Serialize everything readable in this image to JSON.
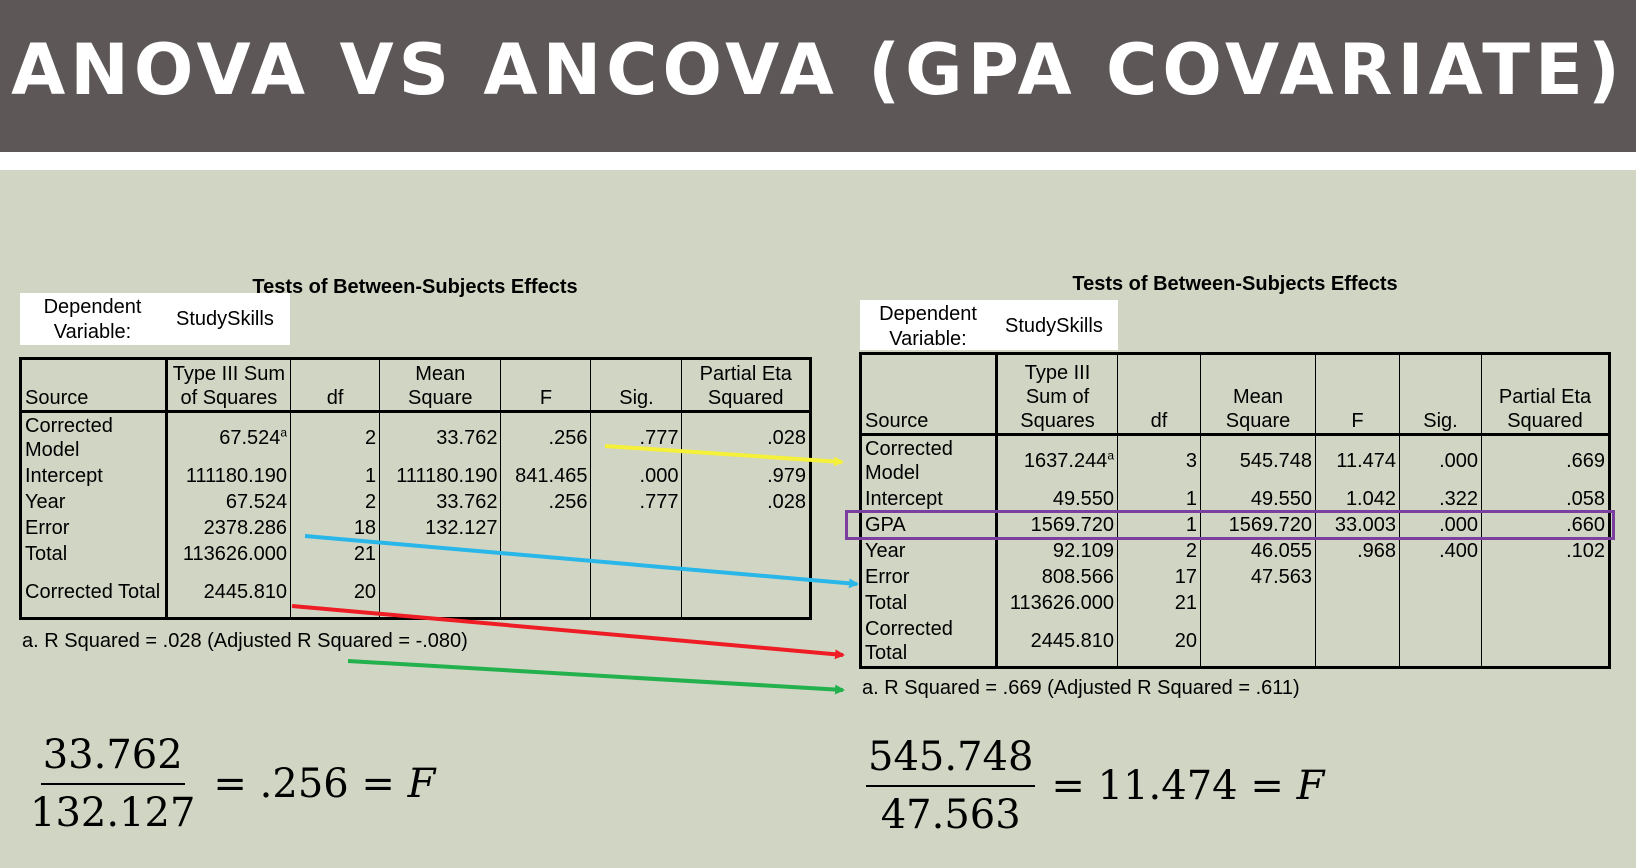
{
  "slide": {
    "title": "ANOVA VS ANCOVA (GPA COVARIATE)"
  },
  "left_table": {
    "caption": "Tests of Between-Subjects Effects",
    "dependent_label": "Dependent Variable:",
    "dependent_value": "StudySkills",
    "headers": {
      "source": "Source",
      "ss": "Type III Sum of Squares",
      "df": "df",
      "ms": "Mean Square",
      "f": "F",
      "sig": "Sig.",
      "eta": "Partial Eta Squared"
    },
    "rows": [
      {
        "source": "Corrected Model",
        "ss": "67.524",
        "ss_sup": "a",
        "df": "2",
        "ms": "33.762",
        "f": ".256",
        "sig": ".777",
        "eta": ".028"
      },
      {
        "source": "Intercept",
        "ss": "111180.190",
        "ss_sup": "",
        "df": "1",
        "ms": "111180.190",
        "f": "841.465",
        "sig": ".000",
        "eta": ".979"
      },
      {
        "source": "Year",
        "ss": "67.524",
        "ss_sup": "",
        "df": "2",
        "ms": "33.762",
        "f": ".256",
        "sig": ".777",
        "eta": ".028"
      },
      {
        "source": "Error",
        "ss": "2378.286",
        "ss_sup": "",
        "df": "18",
        "ms": "132.127",
        "f": "",
        "sig": "",
        "eta": ""
      },
      {
        "source": "Total",
        "ss": "113626.000",
        "ss_sup": "",
        "df": "21",
        "ms": "",
        "f": "",
        "sig": "",
        "eta": ""
      },
      {
        "source": "Corrected Total",
        "ss": "2445.810",
        "ss_sup": "",
        "df": "20",
        "ms": "",
        "f": "",
        "sig": "",
        "eta": ""
      }
    ],
    "footnote": "a. R Squared = .028 (Adjusted R Squared = -.080)"
  },
  "right_table": {
    "caption": "Tests of Between-Subjects Effects",
    "dependent_label": "Dependent Variable:",
    "dependent_value": "StudySkills",
    "headers": {
      "source": "Source",
      "ss": "Type III Sum of Squares",
      "df": "df",
      "ms": "Mean Square",
      "f": "F",
      "sig": "Sig.",
      "eta": "Partial Eta Squared"
    },
    "rows": [
      {
        "source": "Corrected Model",
        "ss": "1637.244",
        "ss_sup": "a",
        "df": "3",
        "ms": "545.748",
        "f": "11.474",
        "sig": ".000",
        "eta": ".669"
      },
      {
        "source": "Intercept",
        "ss": "49.550",
        "ss_sup": "",
        "df": "1",
        "ms": "49.550",
        "f": "1.042",
        "sig": ".322",
        "eta": ".058"
      },
      {
        "source": "GPA",
        "ss": "1569.720",
        "ss_sup": "",
        "df": "1",
        "ms": "1569.720",
        "f": "33.003",
        "sig": ".000",
        "eta": ".660"
      },
      {
        "source": "Year",
        "ss": "92.109",
        "ss_sup": "",
        "df": "2",
        "ms": "46.055",
        "f": ".968",
        "sig": ".400",
        "eta": ".102"
      },
      {
        "source": "Error",
        "ss": "808.566",
        "ss_sup": "",
        "df": "17",
        "ms": "47.563",
        "f": "",
        "sig": "",
        "eta": ""
      },
      {
        "source": "Total",
        "ss": "113626.000",
        "ss_sup": "",
        "df": "21",
        "ms": "",
        "f": "",
        "sig": "",
        "eta": ""
      },
      {
        "source": "Corrected Total",
        "ss": "2445.810",
        "ss_sup": "",
        "df": "20",
        "ms": "",
        "f": "",
        "sig": "",
        "eta": ""
      }
    ],
    "footnote": "a. R Squared = .669 (Adjusted R Squared = .611)"
  },
  "arrow_colors": {
    "corrected_model": "#f5f03a",
    "error": "#29b6e8",
    "corrected_total": "#ee1c24",
    "footnote": "#22b14c",
    "gpa_highlight": "#7b3fa0"
  },
  "equations": {
    "left": {
      "numerator": "33.762",
      "denominator": "132.127",
      "result": "= .256 = ",
      "variable": "F"
    },
    "right": {
      "numerator": "545.748",
      "denominator": "47.563",
      "result": "= 11.474 = ",
      "variable": "F"
    }
  }
}
